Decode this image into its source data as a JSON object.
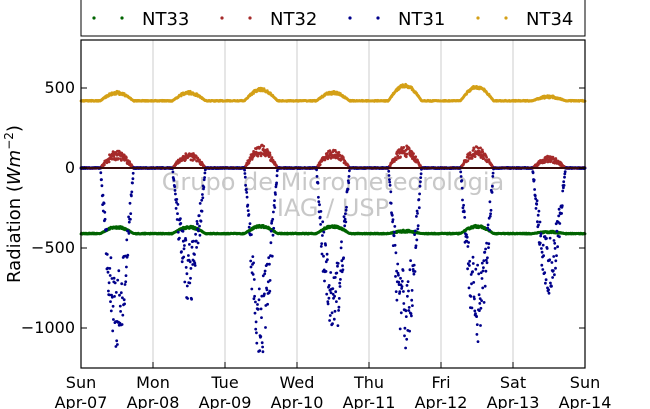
{
  "chart_data": {
    "type": "scatter",
    "title": "",
    "xlabel": "",
    "ylabel_text": "Radiation (",
    "ylabel_unit": "Wm",
    "ylabel_exp": "−2",
    "ylabel_close": ")",
    "ylim": [
      -1250,
      800
    ],
    "yticks": [
      500,
      0,
      -500,
      -1000
    ],
    "ytick_labels": [
      "500",
      "0",
      "−500",
      "−1000"
    ],
    "x_range_days": [
      0,
      7
    ],
    "xticks": [
      {
        "day": "Sun",
        "date": "Apr-07"
      },
      {
        "day": "Mon",
        "date": "Apr-08"
      },
      {
        "day": "Tue",
        "date": "Apr-09"
      },
      {
        "day": "Wed",
        "date": "Apr-10"
      },
      {
        "day": "Thu",
        "date": "Apr-11"
      },
      {
        "day": "Fri",
        "date": "Apr-12"
      },
      {
        "day": "Sat",
        "date": "Apr-13"
      },
      {
        "day": "Sun",
        "date": "Apr-14"
      }
    ],
    "grid": "vertical",
    "legend_position": "top",
    "watermark": [
      "Grupo de Micrometeorologia",
      "IAG / USP"
    ],
    "series": [
      {
        "name": "NT33",
        "color": "#006400",
        "night_level": -410,
        "daily_peaks": [
          -370,
          -370,
          -365,
          -365,
          -395,
          -365,
          -400
        ],
        "daily_noise": [
          8,
          8,
          8,
          8,
          8,
          8,
          6
        ]
      },
      {
        "name": "NT32",
        "color": "#a52a2a",
        "night_level": 0,
        "daily_peaks": [
          80,
          75,
          110,
          90,
          105,
          100,
          55
        ],
        "daily_noise": [
          30,
          25,
          35,
          30,
          35,
          35,
          20
        ]
      },
      {
        "name": "NT31",
        "color": "#00008b",
        "night_level": 0,
        "daily_peaks": [
          -880,
          -650,
          -920,
          -850,
          -900,
          -850,
          -620
        ],
        "daily_noise": [
          250,
          200,
          280,
          260,
          260,
          250,
          180
        ]
      },
      {
        "name": "NT34",
        "color": "#d4a017",
        "night_level": 420,
        "daily_peaks": [
          470,
          470,
          490,
          470,
          515,
          505,
          445
        ],
        "daily_noise": [
          10,
          10,
          10,
          10,
          10,
          10,
          8
        ]
      }
    ]
  }
}
